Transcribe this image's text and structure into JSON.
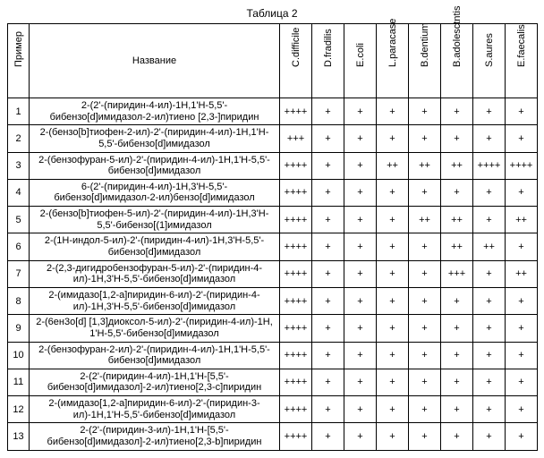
{
  "caption": "Таблица 2",
  "headers": {
    "num": "Пример",
    "name": "Название",
    "cols": [
      "C.difficile",
      "D.fradilis",
      "E.coli",
      "L.paracase",
      "B.dentium",
      "B.adolesctntis",
      "S.aures",
      "E.faecalis"
    ]
  },
  "rows": [
    {
      "n": "1",
      "name": "2-(2'-(пиридин-4-ил)-1H,1'H-5,5'-бибензо[d]имидазол-2-ил)тиено [2,3-]пиридин",
      "v": [
        "++++",
        "+",
        "+",
        "+",
        "+",
        "+",
        "+",
        "+"
      ]
    },
    {
      "n": "2",
      "name": "2-(бензо[b]тиофен-2-ил)-2'-(пиридин-4-ил)-1H,1'H-5,5'-бибензо[d]имидазол",
      "v": [
        "+++",
        "+",
        "+",
        "+",
        "+",
        "+",
        "+",
        "+"
      ]
    },
    {
      "n": "3",
      "name": "2-(бензофуран-5-ил)-2'-(пиридин-4-ил)-1H,1'H-5,5'-бибензо[d]имидазол",
      "v": [
        "++++",
        "+",
        "+",
        "++",
        "++",
        "++",
        "++++",
        "++++"
      ]
    },
    {
      "n": "4",
      "name": "6-(2'-(пиридин-4-ил)-1H,3'H-5,5'-бибензо[d]имидазол-2-ил)бензо[d]имидазол",
      "v": [
        "++++",
        "+",
        "+",
        "+",
        "+",
        "+",
        "+",
        "+"
      ]
    },
    {
      "n": "5",
      "name": "2-(бензо[b]тиофен-5-ил)-2'-(пиридин-4-ил)-1H,3'H-5,5'-бибензо[(1]имидазол",
      "v": [
        "++++",
        "+",
        "+",
        "+",
        "++",
        "++",
        "+",
        "++"
      ]
    },
    {
      "n": "6",
      "name": "2-(1H-индол-5-ил)-2'-(пиридин-4-ил)-1H,3'H-5,5'-бибензо[d]имидазол",
      "v": [
        "++++",
        "+",
        "+",
        "+",
        "+",
        "++",
        "++",
        "+"
      ]
    },
    {
      "n": "7",
      "name": "2-(2,3-дигидробензофуран-5-ил)-2'-(пиридин-4-ил)-1H,3'H-5,5'-бибензо[d]имидазол",
      "v": [
        "++++",
        "+",
        "+",
        "+",
        "+",
        "+++",
        "+",
        "++"
      ]
    },
    {
      "n": "8",
      "name": "2-(имидазо[1,2-a]пиридин-6-ил)-2'-(пиридин-4-ил)-1H,3'H-5,5'-бибензо[d]имидазол",
      "v": [
        "++++",
        "+",
        "+",
        "+",
        "+",
        "+",
        "+",
        "+"
      ]
    },
    {
      "n": "9",
      "name": "2-(6ен3о[d] [1,3]диоксол-5-ил)-2'-(пиридин-4-ил)-1H, 1'H-5,5'-бибензо[d]имидазол",
      "v": [
        "++++",
        "+",
        "+",
        "+",
        "+",
        "+",
        "+",
        "+"
      ]
    },
    {
      "n": "10",
      "name": "2-(бензофуран-2-ил)-2'-(пиридин-4-ил)-1H,1'H-5,5'-бибензо[d]имидазол",
      "v": [
        "++++",
        "+",
        "+",
        "+",
        "+",
        "+",
        "+",
        "+"
      ]
    },
    {
      "n": "11",
      "name": "2-(2'-(пиридин-4-ил)-1H,1'H-[5,5'-бибензо[d]имидазол]-2-ил)тиено[2,3-c]пиридин",
      "v": [
        "++++",
        "+",
        "+",
        "+",
        "+",
        "+",
        "+",
        "+"
      ]
    },
    {
      "n": "12",
      "name": "2-(имидазо[1,2-a]пиридин-6-ил)-2'-(пиридин-3-ил)-1H,1'H-5,5'-бибензо[d]имидазол",
      "v": [
        "++++",
        "+",
        "+",
        "+",
        "+",
        "+",
        "+",
        "+"
      ]
    },
    {
      "n": "13",
      "name": "2-(2'-(пиридин-3-ил)-1H,1'H-[5,5'-бибензо[d]имидазол]-2-ил)тиено[2,3-b]пиридин",
      "v": [
        "++++",
        "+",
        "+",
        "+",
        "+",
        "+",
        "+",
        "+"
      ]
    }
  ]
}
